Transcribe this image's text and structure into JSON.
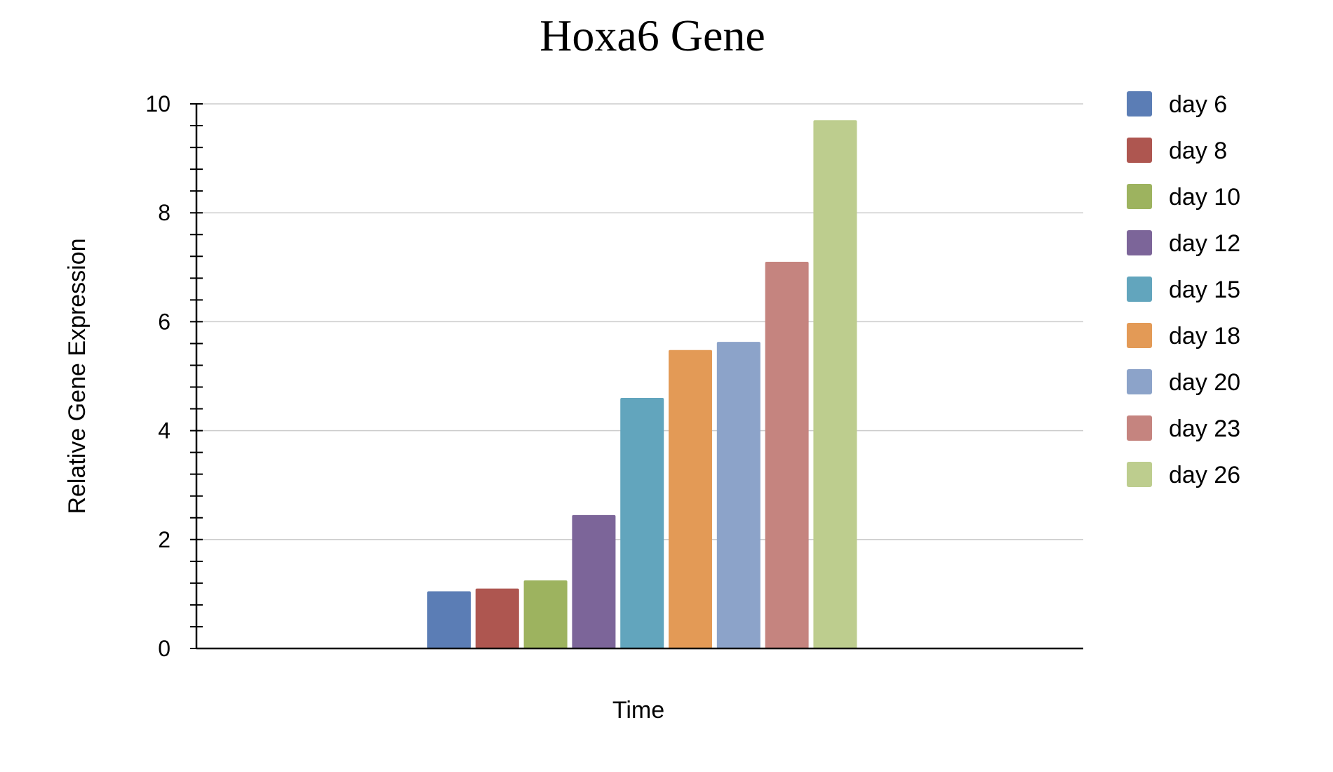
{
  "chart_data": {
    "type": "bar",
    "title": "Hoxa6 Gene",
    "xlabel": "Time",
    "ylabel": "Relative Gene Expression",
    "ylim": [
      0,
      10
    ],
    "yticks": [
      "0",
      "2",
      "4",
      "6",
      "8",
      "10"
    ],
    "grid": true,
    "legend_position": "right",
    "series": [
      {
        "name": "day 6",
        "value": 1.05,
        "color": "#5b7db5"
      },
      {
        "name": "day 8",
        "value": 1.1,
        "color": "#ae5650"
      },
      {
        "name": "day 10",
        "value": 1.25,
        "color": "#9db35f"
      },
      {
        "name": "day 12",
        "value": 2.45,
        "color": "#7c6599"
      },
      {
        "name": "day 15",
        "value": 4.6,
        "color": "#62a5bd"
      },
      {
        "name": "day 18",
        "value": 5.48,
        "color": "#e39a56"
      },
      {
        "name": "day 20",
        "value": 5.63,
        "color": "#8ca3c9"
      },
      {
        "name": "day 23",
        "value": 7.1,
        "color": "#c5847f"
      },
      {
        "name": "day 26",
        "value": 9.7,
        "color": "#bdcd8e"
      }
    ]
  }
}
